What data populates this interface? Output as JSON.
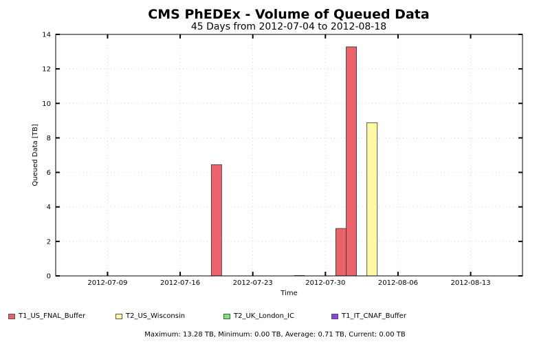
{
  "chart_data": {
    "type": "bar",
    "title": "CMS PhEDEx - Volume of Queued Data",
    "subtitle": "45 Days from 2012-07-04 to 2012-08-18",
    "xlabel": "Time",
    "ylabel": "Queued Data [TB]",
    "ylim": [
      0,
      14
    ],
    "yticks": [
      0,
      2,
      4,
      6,
      8,
      10,
      12,
      14
    ],
    "xlim": [
      "2012-07-04",
      "2012-08-18"
    ],
    "xticks": [
      "2012-07-09",
      "2012-07-16",
      "2012-07-23",
      "2012-07-30",
      "2012-08-06",
      "2012-08-13"
    ],
    "grid": true,
    "legend_position": "bottom",
    "series": [
      {
        "name": "T1_US_FNAL_Buffer",
        "color": "#e8636a",
        "points": [
          {
            "date": "2012-07-19",
            "value": 6.45
          },
          {
            "date": "2012-07-27",
            "value": 0.02
          },
          {
            "date": "2012-07-31",
            "value": 2.75
          },
          {
            "date": "2012-08-01",
            "value": 13.28
          }
        ]
      },
      {
        "name": "T2_US_Wisconsin",
        "color": "#fff9a6",
        "points": [
          {
            "date": "2012-08-03",
            "value": 8.88
          }
        ]
      },
      {
        "name": "T2_UK_London_IC",
        "color": "#7ee07a",
        "points": []
      },
      {
        "name": "T1_IT_CNAF_Buffer",
        "color": "#8844ee",
        "points": []
      }
    ],
    "summary": "Maximum: 13.28 TB, Minimum: 0.00 TB, Average: 0.71 TB, Current: 0.00 TB"
  }
}
